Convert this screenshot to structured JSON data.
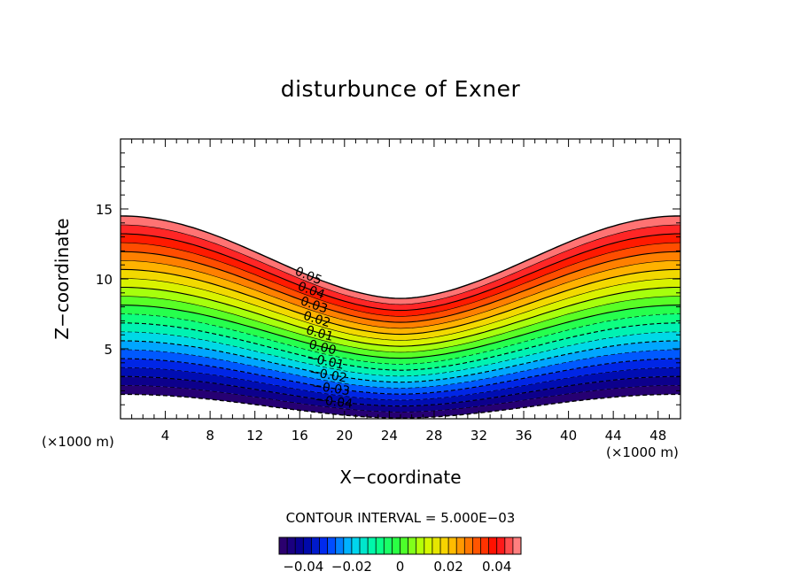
{
  "chart_data": {
    "type": "contour",
    "title": "disturbunce of Exner",
    "xlabel": "X−coordinate",
    "ylabel": "Z−coordinate",
    "x_unit_label": "(×1000 m)",
    "z_unit_label": "(×1000 m)",
    "xlim": [
      0,
      50
    ],
    "ylim": [
      0,
      20
    ],
    "x_ticks": [
      4,
      8,
      12,
      16,
      20,
      24,
      28,
      32,
      36,
      40,
      44,
      48
    ],
    "y_ticks": [
      5,
      10,
      15
    ],
    "contour_interval_label": "CONTOUR INTERVAL = 5.000E−03",
    "contour_interval": 0.005,
    "value_range": [
      -0.05,
      0.05
    ],
    "contour_labels": [
      "0.05",
      "0.04",
      "0.03",
      "0.02",
      "0.01",
      "0.00",
      "−0.01",
      "−0.02",
      "−0.03",
      "−0.04"
    ],
    "colorbar": {
      "ticks": [
        "−0.04",
        "−0.02",
        "0",
        "0.02",
        "0.04"
      ],
      "colors": [
        "#330066",
        "#000099",
        "#0033ff",
        "#00ccff",
        "#00ff99",
        "#33ff33",
        "#ccff00",
        "#ffcc00",
        "#ff6600",
        "#ff0000",
        "#ff9999"
      ]
    }
  }
}
